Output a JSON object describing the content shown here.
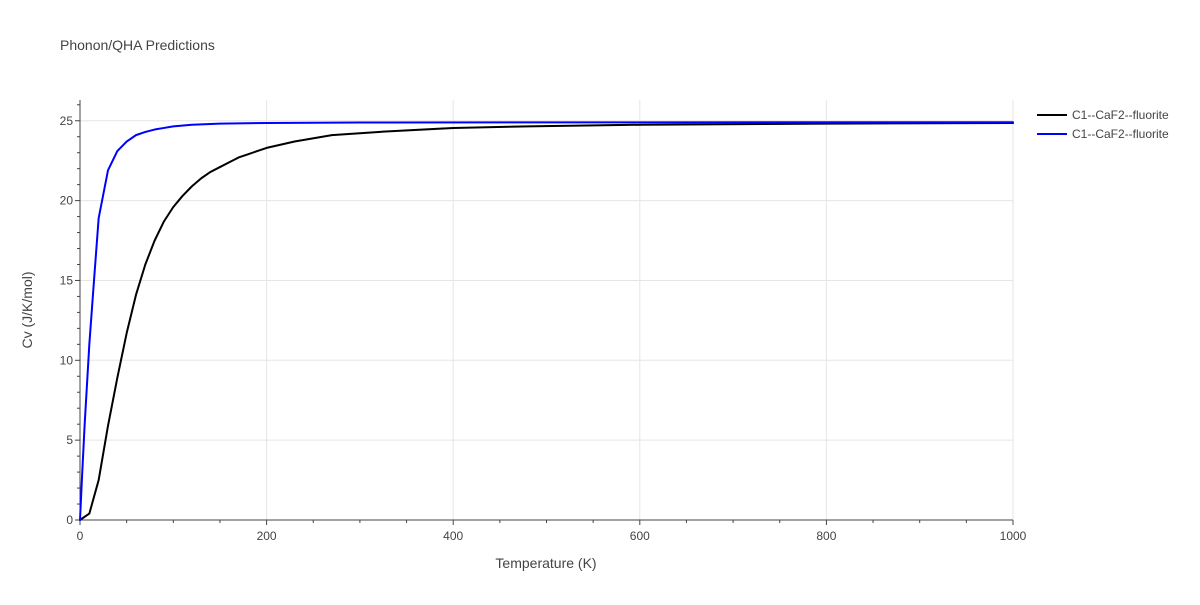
{
  "chart_data": {
    "type": "line",
    "title": "Phonon/QHA Predictions",
    "xlabel": "Temperature (K)",
    "ylabel": "Cv (J/K/mol)",
    "xlim": [
      0,
      1000
    ],
    "ylim": [
      0,
      26.3
    ],
    "x_ticks": [
      0,
      200,
      400,
      600,
      800,
      1000
    ],
    "x_tick_labels": [
      "0",
      "200",
      "400",
      "600",
      "800",
      "1000"
    ],
    "y_ticks": [
      0,
      5,
      10,
      15,
      20,
      25
    ],
    "y_tick_labels": [
      "0",
      "5",
      "10",
      "15",
      "20",
      "25"
    ],
    "grid": true,
    "legend_position": "top-right",
    "series": [
      {
        "name": "C1--CaF2--fluorite",
        "color": "#000000",
        "x": [
          0,
          10,
          20,
          30,
          40,
          50,
          60,
          70,
          80,
          90,
          100,
          110,
          120,
          130,
          140,
          150,
          160,
          170,
          180,
          190,
          200,
          230,
          270,
          320,
          400,
          480,
          600,
          800,
          1000
        ],
        "y": [
          0,
          0.4,
          2.5,
          5.9,
          8.9,
          11.7,
          14.1,
          16.0,
          17.5,
          18.7,
          19.6,
          20.3,
          20.9,
          21.4,
          21.8,
          22.1,
          22.4,
          22.7,
          22.9,
          23.1,
          23.3,
          23.7,
          24.1,
          24.3,
          24.55,
          24.65,
          24.75,
          24.82,
          24.86
        ]
      },
      {
        "name": "C1--CaF2--fluorite",
        "color": "#0000ff",
        "x": [
          0,
          2,
          5,
          10,
          15,
          20,
          30,
          40,
          50,
          60,
          70,
          80,
          90,
          100,
          120,
          150,
          200,
          300,
          500,
          1000
        ],
        "y": [
          0,
          2.5,
          6.0,
          11.0,
          15.0,
          18.9,
          21.9,
          23.1,
          23.7,
          24.1,
          24.3,
          24.45,
          24.55,
          24.65,
          24.75,
          24.82,
          24.86,
          24.89,
          24.9,
          24.91
        ]
      }
    ]
  },
  "colors": {
    "grid": "#e5e5e5",
    "axis": "#444444",
    "text": "#444444",
    "title": "#444444"
  }
}
